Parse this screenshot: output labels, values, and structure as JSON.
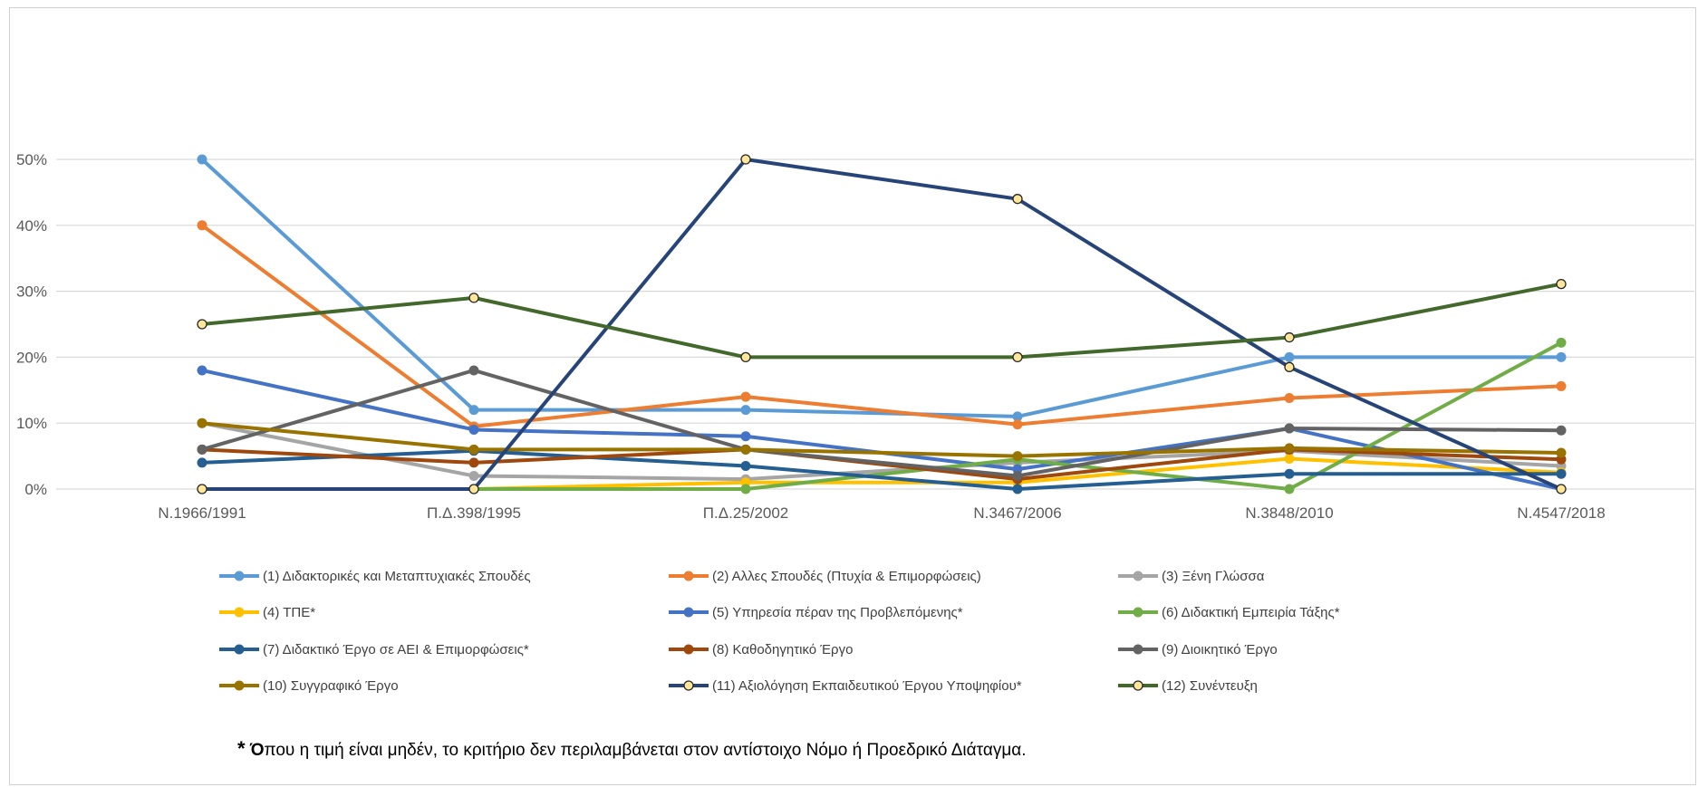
{
  "chart_data": {
    "type": "line",
    "title": "",
    "xlabel": "",
    "ylabel": "",
    "categories": [
      "Ν.1966/1991",
      "Π.Δ.398/1995",
      "Π.Δ.25/2002",
      "Ν.3467/2006",
      "Ν.3848/2010",
      "Ν.4547/2018"
    ],
    "y_ticks": [
      "0%",
      "10%",
      "20%",
      "30%",
      "40%",
      "50%"
    ],
    "ylim": [
      0,
      50
    ],
    "y_unit": "%",
    "grid": true,
    "legend_position": "bottom",
    "series": [
      {
        "name": "(1) Διδακτορικές και Μεταπτυχιακές Σπουδές",
        "color": "#5B9BD5",
        "marker": "filled",
        "values": [
          50,
          12,
          12,
          11,
          20,
          20
        ]
      },
      {
        "name": "(2) Αλλες Σπουδές (Πτυχία & Επιμορφώσεις)",
        "color": "#ED7D31",
        "marker": "filled",
        "values": [
          40,
          9.5,
          14,
          9.8,
          13.8,
          15.6
        ]
      },
      {
        "name": "(3) Ξένη Γλώσσα",
        "color": "#A5A5A5",
        "marker": "filled",
        "values": [
          10,
          2,
          1.5,
          4,
          5.8,
          3.5
        ]
      },
      {
        "name": "(4) ΤΠΕ*",
        "color": "#FFC000",
        "marker": "filled",
        "values": [
          0,
          0,
          1,
          1,
          4.6,
          2.5
        ]
      },
      {
        "name": "(5) Υπηρεσία  πέραν της Προβλεπόμενης*",
        "color": "#4472C4",
        "marker": "filled",
        "values": [
          18,
          9,
          8,
          3,
          9.2,
          0
        ]
      },
      {
        "name": "(6) Διδακτική Εμπειρία Τάξης*",
        "color": "#70AD47",
        "marker": "filled",
        "values": [
          0,
          0,
          0,
          4.5,
          0,
          22.2
        ]
      },
      {
        "name": "(7) Διδακτικό Έργο σε ΑΕΙ & Επιμορφώσεις*",
        "color": "#255E91",
        "marker": "filled",
        "values": [
          4,
          5.8,
          3.5,
          0,
          2.3,
          2.3
        ]
      },
      {
        "name": "(8) Καθοδηγητικό Έργο",
        "color": "#9E480E",
        "marker": "filled",
        "values": [
          6,
          4,
          6,
          1.5,
          6,
          4.5
        ]
      },
      {
        "name": "(9) Διοικητικό Έργο",
        "color": "#636363",
        "marker": "filled",
        "values": [
          6,
          18,
          6,
          2,
          9.2,
          8.9
        ]
      },
      {
        "name": "(10) Συγγραφικό Έργο",
        "color": "#997300",
        "marker": "filled",
        "values": [
          10,
          6,
          6,
          5,
          6.2,
          5.5
        ]
      },
      {
        "name": "(11) Αξιολόγηση Εκπαιδευτικού Έργου Υποψηφίου*",
        "color": "#264478",
        "marker": "yellow",
        "values": [
          0,
          0,
          50,
          44,
          18.5,
          0
        ]
      },
      {
        "name": "(12) Συνέντευξη",
        "color": "#43682B",
        "marker": "yellow",
        "values": [
          25,
          29,
          20,
          20,
          23,
          31.1
        ]
      }
    ]
  },
  "footnote": {
    "star": "*",
    "first_letter": "Ό",
    "rest": "που η τιμή  είναι μηδέν, το κριτήριο δεν περιλαμβάνεται στον αντίστοιχο Νόμο ή Προεδρικό Διάταγμα."
  }
}
